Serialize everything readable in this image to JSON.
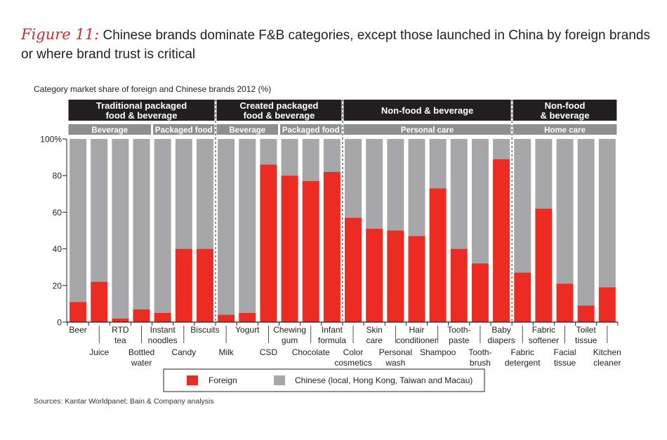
{
  "figure_label": "Figure 11",
  "figure_colon": ":",
  "title": "Chinese brands dominate F&B categories, except those launched in China by foreign brands or where brand trust is critical",
  "subtitle": "Category market share of foreign and Chinese brands 2012 (%)",
  "source": "Sources: Kantar Worldpanel; Bain & Company analysis",
  "colors": {
    "foreign": "#ec2c23",
    "chinese": "#a7a7a9",
    "header": "#231f20",
    "subheader": "#8f8f91",
    "accent": "#d8282b"
  },
  "chart_data": {
    "type": "bar",
    "stacked": true,
    "ylim": [
      0,
      100
    ],
    "yticks": [
      0,
      20,
      40,
      60,
      80,
      100
    ],
    "ytick_labels": [
      "0",
      "20",
      "40",
      "60",
      "80",
      "100%"
    ],
    "categories": [
      "Beer",
      "Juice",
      "RTD tea",
      "Bottled water",
      "Instant noodles",
      "Candy",
      "Biscuits",
      "Milk",
      "Yogurt",
      "CSD",
      "Chewing gum",
      "Chocolate",
      "Infant formula",
      "Color cosmetics",
      "Skin care",
      "Personal wash",
      "Hair conditioner",
      "Shampoo",
      "Tooth-paste",
      "Tooth-brush",
      "Baby diapers",
      "Fabric detergent",
      "Fabric softener",
      "Facial tissue",
      "Toilet tissue",
      "Kitchen cleaner"
    ],
    "category_label_lines": [
      [
        "Beer"
      ],
      [
        "Juice"
      ],
      [
        "RTD",
        "tea"
      ],
      [
        "Bottled",
        "water"
      ],
      [
        "Instant",
        "noodles"
      ],
      [
        "Candy"
      ],
      [
        "Biscuits"
      ],
      [
        "Milk"
      ],
      [
        "Yogurt"
      ],
      [
        "CSD"
      ],
      [
        "Chewing",
        "gum"
      ],
      [
        "Chocolate"
      ],
      [
        "Infant",
        "formula"
      ],
      [
        "Color",
        "cosmetics"
      ],
      [
        "Skin",
        "care"
      ],
      [
        "Personal",
        "wash"
      ],
      [
        "Hair",
        "conditioner"
      ],
      [
        "Shampoo"
      ],
      [
        "Tooth-",
        "paste"
      ],
      [
        "Tooth-",
        "brush"
      ],
      [
        "Baby",
        "diapers"
      ],
      [
        "Fabric",
        "detergent"
      ],
      [
        "Fabric",
        "softener"
      ],
      [
        "Facial",
        "tissue"
      ],
      [
        "Toilet",
        "tissue"
      ],
      [
        "Kitchen",
        "cleaner"
      ]
    ],
    "label_row": [
      0,
      1,
      0,
      1,
      0,
      1,
      0,
      1,
      0,
      1,
      0,
      1,
      0,
      1,
      0,
      1,
      0,
      1,
      0,
      1,
      0,
      1,
      0,
      1,
      0,
      1
    ],
    "series": [
      {
        "name": "Foreign",
        "values": [
          11,
          22,
          2,
          7,
          5,
          40,
          40,
          4,
          5,
          86,
          80,
          77,
          82,
          57,
          51,
          50,
          47,
          73,
          40,
          32,
          89,
          27,
          62,
          21,
          9,
          19
        ]
      },
      {
        "name": "Chinese (local, Hong Kong, Taiwan and Macau)",
        "values": [
          89,
          78,
          98,
          93,
          95,
          60,
          60,
          96,
          95,
          14,
          20,
          23,
          18,
          43,
          49,
          50,
          53,
          27,
          60,
          68,
          11,
          73,
          38,
          79,
          91,
          81
        ]
      }
    ],
    "groups": [
      {
        "title_lines": [
          "Traditional packaged",
          "food & beverage"
        ],
        "start": 0,
        "end": 6,
        "subgroups": [
          {
            "label": "Beverage",
            "start": 0,
            "end": 3
          },
          {
            "label": "Packaged food",
            "start": 4,
            "end": 6
          }
        ]
      },
      {
        "title_lines": [
          "Created packaged",
          "food & beverage"
        ],
        "start": 7,
        "end": 12,
        "subgroups": [
          {
            "label": "Beverage",
            "start": 7,
            "end": 9
          },
          {
            "label": "Packaged food",
            "start": 10,
            "end": 12
          }
        ]
      },
      {
        "title_lines": [
          "Non-food & beverage"
        ],
        "start": 13,
        "end": 20,
        "subgroups": [
          {
            "label": "Personal care",
            "start": 13,
            "end": 20
          }
        ]
      },
      {
        "title_lines": [
          "Non-food",
          "& beverage"
        ],
        "start": 21,
        "end": 25,
        "subgroups": [
          {
            "label": "Home care",
            "start": 21,
            "end": 25
          }
        ]
      }
    ],
    "legend_position": "bottom-center"
  }
}
